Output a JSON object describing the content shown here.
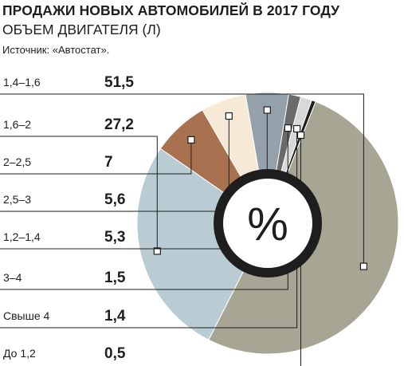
{
  "title": "ПРОДАЖИ НОВЫХ АВТОМОБИЛЕЙ В 2017 ГОДУ",
  "subtitle": "ОБЪЕМ ДВИГАТЕЛЯ (Л)",
  "source": "Источник: «Автостат».",
  "center_label": "%",
  "chart_data": {
    "type": "pie",
    "title": "ПРОДАЖИ НОВЫХ АВТОМОБИЛЕЙ В 2017 ГОДУ",
    "subtitle": "ОБЪЕМ ДВИГАТЕЛЯ (Л)",
    "unit": "%",
    "donut": true,
    "categories": [
      "1,4–1,6",
      "1,6–2",
      "2–2,5",
      "2,5–3",
      "1,2–1,4",
      "3–4",
      "Свыше 4",
      "До 1,2"
    ],
    "values": [
      51.5,
      27.2,
      7,
      5.6,
      5.3,
      1.5,
      1.4,
      0.5
    ],
    "value_labels": [
      "51,5",
      "27,2",
      "7",
      "5,6",
      "5,3",
      "1,5",
      "1,4",
      "0,5"
    ],
    "colors": [
      "#a7a694",
      "#b9ccd3",
      "#a8714f",
      "#f6ead7",
      "#95a1aa",
      "#6a6a6a",
      "#d8d8d8",
      "#1e1e1e"
    ],
    "legend": "left"
  }
}
